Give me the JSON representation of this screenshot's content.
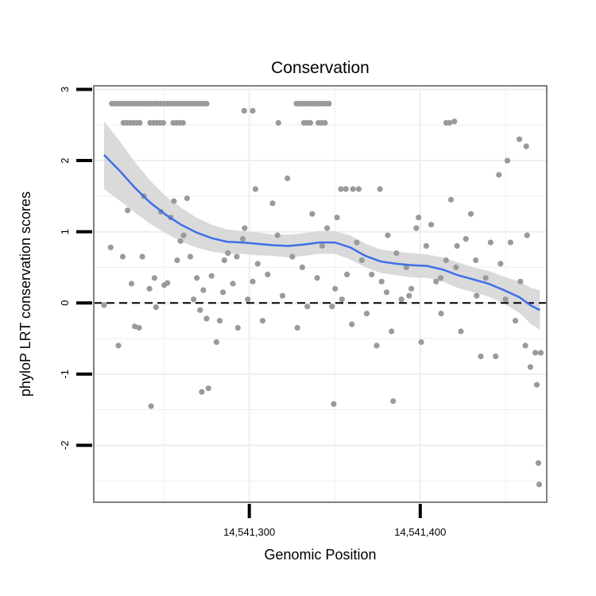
{
  "chart_data": {
    "type": "scatter",
    "title": "Conservation",
    "xlabel": "Genomic Position",
    "ylabel": "phyloP LRT conservation scores",
    "xlim": [
      14541209,
      14541474
    ],
    "ylim": [
      -2.8,
      3.05
    ],
    "x_ticks": [
      {
        "value": 14541300,
        "label": "14,541,300"
      },
      {
        "value": 14541400,
        "label": "14,541,400"
      }
    ],
    "y_ticks": [
      {
        "value": -2,
        "label": "-2"
      },
      {
        "value": -1,
        "label": "-1"
      },
      {
        "value": 0,
        "label": "0"
      },
      {
        "value": 1,
        "label": "1"
      },
      {
        "value": 2,
        "label": "2"
      },
      {
        "value": 3,
        "label": "3"
      }
    ],
    "reference_line": {
      "y": 0,
      "style": "dashed"
    },
    "grid": true,
    "colors": {
      "points": "#9a9a9a",
      "smooth": "#3f6ee8",
      "band": "#d4d4d4",
      "frame": "#808080",
      "grid": "#eeeeee"
    },
    "points": [
      [
        14541219.6,
        2.8
      ],
      [
        14541221.5,
        2.8
      ],
      [
        14541223.4,
        2.8
      ],
      [
        14541225.4,
        2.8
      ],
      [
        14541227.3,
        2.8
      ],
      [
        14541229.2,
        2.8
      ],
      [
        14541231.1,
        2.8
      ],
      [
        14541233.0,
        2.8
      ],
      [
        14541234.9,
        2.8
      ],
      [
        14541236.8,
        2.8
      ],
      [
        14541238.7,
        2.8
      ],
      [
        14541240.6,
        2.8
      ],
      [
        14541242.5,
        2.8
      ],
      [
        14541244.5,
        2.8
      ],
      [
        14541246.4,
        2.8
      ],
      [
        14541248.3,
        2.8
      ],
      [
        14541250.2,
        2.8
      ],
      [
        14541252.1,
        2.8
      ],
      [
        14541254.0,
        2.8
      ],
      [
        14541255.9,
        2.8
      ],
      [
        14541257.8,
        2.8
      ],
      [
        14541259.7,
        2.8
      ],
      [
        14541261.6,
        2.8
      ],
      [
        14541263.6,
        2.8
      ],
      [
        14541265.5,
        2.8
      ],
      [
        14541267.4,
        2.8
      ],
      [
        14541269.3,
        2.8
      ],
      [
        14541271.2,
        2.8
      ],
      [
        14541273.1,
        2.8
      ],
      [
        14541275.0,
        2.8
      ],
      [
        14541215.0,
        -0.03
      ],
      [
        14541218.9,
        0.78
      ],
      [
        14541223.4,
        -0.6
      ],
      [
        14541225.9,
        0.65
      ],
      [
        14541228.8,
        1.3
      ],
      [
        14541231.1,
        0.27
      ],
      [
        14541233.0,
        -0.33
      ],
      [
        14541235.5,
        -0.35
      ],
      [
        14541237.4,
        0.65
      ],
      [
        14541238.3,
        1.5
      ],
      [
        14541241.6,
        0.2
      ],
      [
        14541244.5,
        0.35
      ],
      [
        14541245.4,
        -0.06
      ],
      [
        14541248.3,
        1.28
      ],
      [
        14541250.2,
        0.25
      ],
      [
        14541252.1,
        0.28
      ],
      [
        14541254.0,
        1.2
      ],
      [
        14541255.9,
        1.43
      ],
      [
        14541257.8,
        0.6
      ],
      [
        14541259.7,
        0.87
      ],
      [
        14541261.6,
        0.95
      ],
      [
        14541263.6,
        1.47
      ],
      [
        14541265.5,
        0.65
      ],
      [
        14541267.4,
        0.05
      ],
      [
        14541269.3,
        0.35
      ],
      [
        14541271.2,
        -0.1
      ],
      [
        14541273.1,
        0.18
      ],
      [
        14541275.0,
        -0.22
      ],
      [
        14541277.9,
        0.38
      ],
      [
        14541280.8,
        -0.55
      ],
      [
        14541282.7,
        -0.25
      ],
      [
        14541284.6,
        0.15
      ],
      [
        14541287.5,
        0.7
      ],
      [
        14541290.4,
        0.27
      ],
      [
        14541293.3,
        -0.35
      ],
      [
        14541296.2,
        0.9
      ],
      [
        14541299.1,
        0.05
      ],
      [
        14541302.0,
        0.3
      ],
      [
        14541304.9,
        0.55
      ],
      [
        14541307.8,
        -0.25
      ],
      [
        14541310.7,
        0.4
      ],
      [
        14541313.6,
        1.4
      ],
      [
        14541316.5,
        0.95
      ],
      [
        14541319.4,
        0.1
      ],
      [
        14541322.3,
        1.75
      ],
      [
        14541325.2,
        0.65
      ],
      [
        14541328.1,
        -0.35
      ],
      [
        14541331.0,
        0.5
      ],
      [
        14541333.9,
        -0.05
      ],
      [
        14541336.8,
        1.25
      ],
      [
        14541339.7,
        0.35
      ],
      [
        14541342.6,
        0.8
      ],
      [
        14541345.5,
        1.05
      ],
      [
        14541348.4,
        -0.05
      ],
      [
        14541351.3,
        1.2
      ],
      [
        14541354.2,
        0.05
      ],
      [
        14541357.1,
        0.4
      ],
      [
        14541360.0,
        -0.3
      ],
      [
        14541362.9,
        0.85
      ],
      [
        14541365.8,
        0.6
      ],
      [
        14541368.7,
        -0.15
      ],
      [
        14541371.6,
        0.4
      ],
      [
        14541374.5,
        -0.6
      ],
      [
        14541377.4,
        0.3
      ],
      [
        14541380.3,
        0.15
      ],
      [
        14541383.2,
        -0.4
      ],
      [
        14541386.1,
        0.7
      ],
      [
        14541389.0,
        0.05
      ],
      [
        14541391.9,
        0.5
      ],
      [
        14541394.8,
        0.2
      ],
      [
        14541397.7,
        1.05
      ],
      [
        14541400.6,
        -0.55
      ],
      [
        14541403.5,
        0.8
      ],
      [
        14541406.4,
        1.1
      ],
      [
        14541409.3,
        0.3
      ],
      [
        14541412.2,
        -0.15
      ],
      [
        14541415.1,
        0.6
      ],
      [
        14541418.0,
        1.45
      ],
      [
        14541420.9,
        0.5
      ],
      [
        14541423.8,
        -0.4
      ],
      [
        14541426.7,
        0.9
      ],
      [
        14541429.6,
        1.25
      ],
      [
        14541432.5,
        0.6
      ],
      [
        14541435.4,
        -0.75
      ],
      [
        14541438.3,
        0.35
      ],
      [
        14541441.2,
        0.85
      ],
      [
        14541444.1,
        -0.75
      ],
      [
        14541447.0,
        0.55
      ],
      [
        14541449.9,
        0.05
      ],
      [
        14541452.8,
        0.85
      ],
      [
        14541455.7,
        -0.25
      ],
      [
        14541458.6,
        0.3
      ],
      [
        14541461.5,
        -0.6
      ],
      [
        14541464.4,
        -0.9
      ],
      [
        14541467.3,
        -0.7
      ],
      [
        14541468.2,
        -1.15
      ],
      [
        14541469.1,
        -2.25
      ],
      [
        14541469.6,
        -2.55
      ],
      [
        14541470.5,
        -0.7
      ],
      [
        14541272.2,
        -1.25
      ],
      [
        14541276.1,
        -1.2
      ],
      [
        14541242.5,
        -1.45
      ],
      [
        14541349.4,
        -1.42
      ],
      [
        14541384.2,
        -1.38
      ],
      [
        14541420.0,
        2.55
      ],
      [
        14541458.0,
        2.3
      ],
      [
        14541462.0,
        2.2
      ],
      [
        14541451.0,
        2.0
      ],
      [
        14541446.0,
        1.8
      ],
      [
        14541462.5,
        0.95
      ],
      [
        14541399.0,
        1.2
      ],
      [
        14541412.0,
        0.35
      ],
      [
        14541421.5,
        0.8
      ],
      [
        14541433.0,
        0.1
      ],
      [
        14541297.3,
        1.05
      ],
      [
        14541303.6,
        1.6
      ],
      [
        14541292.7,
        0.65
      ],
      [
        14541285.4,
        0.6
      ],
      [
        14541350.2,
        0.2
      ],
      [
        14541393.5,
        0.1
      ],
      [
        14541376.4,
        1.6
      ],
      [
        14541381.0,
        0.95
      ],
      [
        14541364.0,
        1.6
      ],
      [
        14541360.6,
        1.6
      ],
      [
        14541356.5,
        1.6
      ],
      [
        14541353.6,
        1.6
      ],
      [
        14541226.4,
        2.53
      ],
      [
        14541228.3,
        2.53
      ],
      [
        14541230.2,
        2.53
      ],
      [
        14541232.1,
        2.53
      ],
      [
        14541234.0,
        2.53
      ],
      [
        14541235.9,
        2.53
      ],
      [
        14541242.0,
        2.53
      ],
      [
        14541244.0,
        2.53
      ],
      [
        14541245.9,
        2.53
      ],
      [
        14541247.8,
        2.53
      ],
      [
        14541249.7,
        2.53
      ],
      [
        14541255.5,
        2.53
      ],
      [
        14541257.4,
        2.53
      ],
      [
        14541259.3,
        2.53
      ],
      [
        14541261.2,
        2.53
      ],
      [
        14541317.0,
        2.53
      ],
      [
        14541331.9,
        2.53
      ],
      [
        14541333.8,
        2.53
      ],
      [
        14541335.7,
        2.53
      ],
      [
        14541340.4,
        2.53
      ],
      [
        14541342.3,
        2.53
      ],
      [
        14541344.3,
        2.53
      ],
      [
        14541415.2,
        2.53
      ],
      [
        14541417.1,
        2.53
      ],
      [
        14541297.0,
        2.7
      ],
      [
        14541302.0,
        2.7
      ],
      [
        14541327.6,
        2.8
      ],
      [
        14541329.5,
        2.8
      ],
      [
        14541331.4,
        2.8
      ],
      [
        14541333.3,
        2.8
      ],
      [
        14541335.2,
        2.8
      ],
      [
        14541337.1,
        2.8
      ],
      [
        14541339.0,
        2.8
      ],
      [
        14541340.9,
        2.8
      ],
      [
        14541342.8,
        2.8
      ],
      [
        14541344.7,
        2.8
      ],
      [
        14541346.6,
        2.8
      ]
    ],
    "smooth_curve": [
      [
        14541215,
        2.08
      ],
      [
        14541224,
        1.86
      ],
      [
        14541233,
        1.62
      ],
      [
        14541242,
        1.41
      ],
      [
        14541251,
        1.24
      ],
      [
        14541260,
        1.1
      ],
      [
        14541269,
        0.99
      ],
      [
        14541278,
        0.91
      ],
      [
        14541287,
        0.86
      ],
      [
        14541296,
        0.85
      ],
      [
        14541305,
        0.83
      ],
      [
        14541314,
        0.81
      ],
      [
        14541323,
        0.8
      ],
      [
        14541332,
        0.82
      ],
      [
        14541341,
        0.85
      ],
      [
        14541350,
        0.85
      ],
      [
        14541359,
        0.78
      ],
      [
        14541368,
        0.66
      ],
      [
        14541377,
        0.58
      ],
      [
        14541386,
        0.55
      ],
      [
        14541395,
        0.53
      ],
      [
        14541404,
        0.52
      ],
      [
        14541413,
        0.47
      ],
      [
        14541422,
        0.39
      ],
      [
        14541431,
        0.33
      ],
      [
        14541440,
        0.27
      ],
      [
        14541449,
        0.18
      ],
      [
        14541458,
        0.08
      ],
      [
        14541465,
        -0.04
      ],
      [
        14541470,
        -0.1
      ]
    ],
    "band_upper": [
      [
        14541215,
        2.55
      ],
      [
        14541224,
        2.28
      ],
      [
        14541233,
        1.98
      ],
      [
        14541242,
        1.72
      ],
      [
        14541251,
        1.5
      ],
      [
        14541260,
        1.34
      ],
      [
        14541269,
        1.2
      ],
      [
        14541278,
        1.1
      ],
      [
        14541287,
        1.03
      ],
      [
        14541296,
        1.01
      ],
      [
        14541305,
        0.99
      ],
      [
        14541314,
        0.96
      ],
      [
        14541323,
        0.96
      ],
      [
        14541332,
        0.98
      ],
      [
        14541341,
        1.01
      ],
      [
        14541350,
        1.01
      ],
      [
        14541359,
        0.95
      ],
      [
        14541368,
        0.83
      ],
      [
        14541377,
        0.75
      ],
      [
        14541386,
        0.72
      ],
      [
        14541395,
        0.7
      ],
      [
        14541404,
        0.68
      ],
      [
        14541413,
        0.64
      ],
      [
        14541422,
        0.57
      ],
      [
        14541431,
        0.5
      ],
      [
        14541440,
        0.45
      ],
      [
        14541449,
        0.37
      ],
      [
        14541458,
        0.3
      ],
      [
        14541465,
        0.21
      ],
      [
        14541470,
        0.18
      ]
    ],
    "band_lower": [
      [
        14541215,
        1.6
      ],
      [
        14541224,
        1.44
      ],
      [
        14541233,
        1.27
      ],
      [
        14541242,
        1.11
      ],
      [
        14541251,
        0.98
      ],
      [
        14541260,
        0.86
      ],
      [
        14541269,
        0.78
      ],
      [
        14541278,
        0.72
      ],
      [
        14541287,
        0.69
      ],
      [
        14541296,
        0.69
      ],
      [
        14541305,
        0.67
      ],
      [
        14541314,
        0.66
      ],
      [
        14541323,
        0.64
      ],
      [
        14541332,
        0.66
      ],
      [
        14541341,
        0.69
      ],
      [
        14541350,
        0.69
      ],
      [
        14541359,
        0.61
      ],
      [
        14541368,
        0.5
      ],
      [
        14541377,
        0.42
      ],
      [
        14541386,
        0.39
      ],
      [
        14541395,
        0.36
      ],
      [
        14541404,
        0.35
      ],
      [
        14541413,
        0.3
      ],
      [
        14541422,
        0.21
      ],
      [
        14541431,
        0.15
      ],
      [
        14541440,
        0.09
      ],
      [
        14541449,
        -0.01
      ],
      [
        14541458,
        -0.14
      ],
      [
        14541465,
        -0.3
      ],
      [
        14541470,
        -0.38
      ]
    ]
  }
}
